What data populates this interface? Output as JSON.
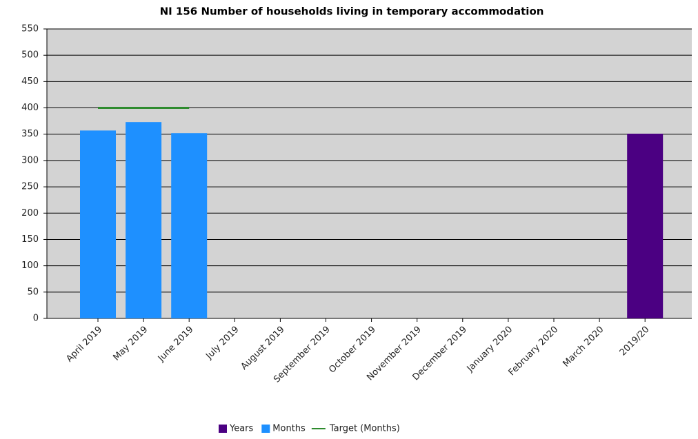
{
  "chart_data": {
    "type": "bar",
    "title": "NI 156 Number of households living in temporary accommodation",
    "categories": [
      "April 2019",
      "May 2019",
      "June 2019",
      "July 2019",
      "August 2019",
      "September 2019",
      "October 2019",
      "November 2019",
      "December 2019",
      "January 2020",
      "February 2020",
      "March 2020",
      "2019/20"
    ],
    "series": [
      {
        "name": "Years",
        "type": "bar",
        "color": "#4b0082",
        "values": [
          null,
          null,
          null,
          null,
          null,
          null,
          null,
          null,
          null,
          null,
          null,
          null,
          351
        ]
      },
      {
        "name": "Months",
        "type": "bar",
        "color": "#1e90ff",
        "values": [
          357,
          373,
          352,
          null,
          null,
          null,
          null,
          null,
          null,
          null,
          null,
          null,
          null
        ]
      },
      {
        "name": "Target (Months)",
        "type": "line",
        "color": "#2e8b2e",
        "values": [
          400,
          400,
          400,
          null,
          null,
          null,
          null,
          null,
          null,
          null,
          null,
          null,
          null
        ]
      }
    ],
    "ylim": [
      0,
      550
    ],
    "yticks": [
      0,
      50,
      100,
      150,
      200,
      250,
      300,
      350,
      400,
      450,
      500,
      550
    ],
    "grid": true,
    "legend": "bottom"
  }
}
